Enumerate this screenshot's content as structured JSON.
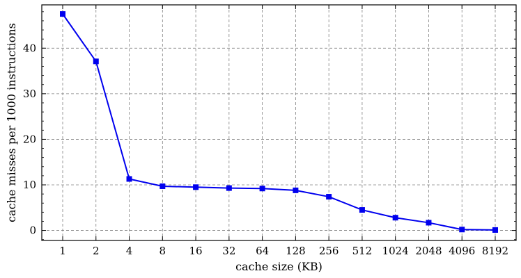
{
  "chart_data": {
    "type": "line",
    "title": "",
    "xlabel": "cache size (KB)",
    "ylabel": "cache misses per 1000 instructions",
    "categories": [
      "1",
      "2",
      "4",
      "8",
      "16",
      "32",
      "64",
      "128",
      "256",
      "512",
      "1024",
      "2048",
      "4096",
      "8192"
    ],
    "series": [
      {
        "color": "#0000ee",
        "marker": "square",
        "values": [
          47.5,
          37.1,
          11.3,
          9.7,
          9.5,
          9.3,
          9.2,
          8.8,
          7.4,
          4.5,
          2.8,
          1.7,
          0.2,
          0.1
        ]
      }
    ],
    "ylim": [
      -2.2,
      49.5
    ],
    "yticks": [
      0,
      10,
      20,
      30,
      40
    ],
    "grid": true,
    "grid_style": "dashed",
    "axis_color": "#000000",
    "grid_color": "#808080"
  }
}
